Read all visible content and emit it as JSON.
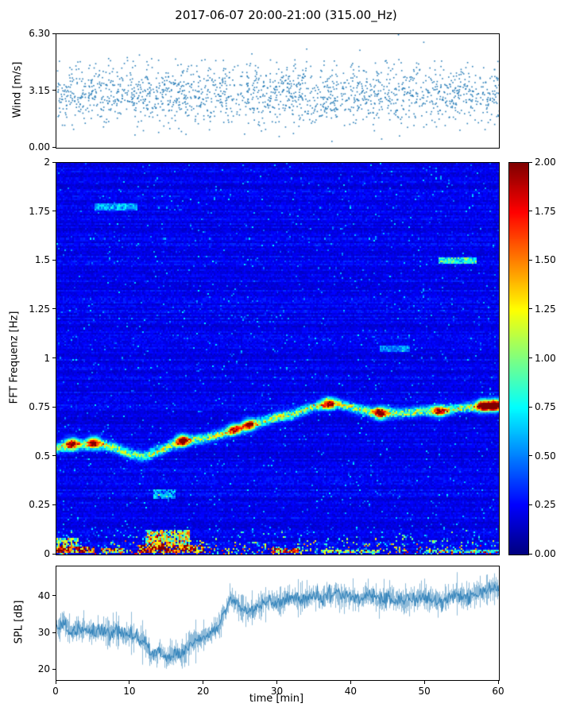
{
  "title": "2017-06-07 20:00-21:00 (315.00_Hz)",
  "colors": {
    "series": "#1f77b4",
    "axis": "#000000"
  },
  "chart_data": [
    {
      "type": "scatter",
      "name": "wind-speed",
      "ylabel": "Wind [m/s]",
      "x_range": [
        0,
        60
      ],
      "ylim": [
        0,
        6.3
      ],
      "yticks": [
        {
          "v": 6.3,
          "label": "6.30"
        },
        {
          "v": 3.15,
          "label": "3.15"
        },
        {
          "v": 0,
          "label": "0.00"
        }
      ],
      "marker_color": "#1f77b4",
      "series": {
        "name": "wind speed",
        "n_points": 1750,
        "mean": 3.0,
        "std": 0.85,
        "min": 0.2,
        "max": 6.3
      }
    },
    {
      "type": "heatmap",
      "name": "fft-spectrogram",
      "ylabel": "FFT Frequenz [Hz]",
      "x_range": [
        0,
        60
      ],
      "ylim": [
        0,
        2
      ],
      "yticks": [
        {
          "v": 2,
          "label": "2"
        },
        {
          "v": 1.75,
          "label": "1.75"
        },
        {
          "v": 1.5,
          "label": "1.5"
        },
        {
          "v": 1.25,
          "label": "1.25"
        },
        {
          "v": 1,
          "label": "1"
        },
        {
          "v": 0.75,
          "label": "0.75"
        },
        {
          "v": 0.5,
          "label": "0.5"
        },
        {
          "v": 0.25,
          "label": "0.25"
        },
        {
          "v": 0,
          "label": "0"
        }
      ],
      "colormap": "jet",
      "vmin": 0,
      "vmax": 2,
      "colorbar_ticks": [
        {
          "v": 2,
          "label": "2.00"
        },
        {
          "v": 1.75,
          "label": "1.75"
        },
        {
          "v": 1.5,
          "label": "1.50"
        },
        {
          "v": 1.25,
          "label": "1.25"
        },
        {
          "v": 1,
          "label": "1.00"
        },
        {
          "v": 0.75,
          "label": "0.75"
        },
        {
          "v": 0.5,
          "label": "0.50"
        },
        {
          "v": 0.25,
          "label": "0.25"
        },
        {
          "v": 0,
          "label": "0.00"
        }
      ],
      "background": {
        "mean": 0.22,
        "speckle_prob": 0.03,
        "speckle_max": 0.45
      },
      "ridge": {
        "points": [
          [
            0,
            0.54
          ],
          [
            2,
            0.56
          ],
          [
            4,
            0.56
          ],
          [
            6,
            0.56
          ],
          [
            8,
            0.54
          ],
          [
            10,
            0.51
          ],
          [
            12,
            0.5
          ],
          [
            14,
            0.53
          ],
          [
            16,
            0.56
          ],
          [
            18,
            0.58
          ],
          [
            20,
            0.59
          ],
          [
            22,
            0.61
          ],
          [
            24,
            0.63
          ],
          [
            26,
            0.66
          ],
          [
            28,
            0.68
          ],
          [
            30,
            0.7
          ],
          [
            32,
            0.71
          ],
          [
            34,
            0.74
          ],
          [
            36,
            0.76
          ],
          [
            38,
            0.77
          ],
          [
            40,
            0.75
          ],
          [
            42,
            0.73
          ],
          [
            44,
            0.72
          ],
          [
            46,
            0.72
          ],
          [
            48,
            0.72
          ],
          [
            50,
            0.73
          ],
          [
            52,
            0.73
          ],
          [
            54,
            0.74
          ],
          [
            56,
            0.75
          ],
          [
            58,
            0.75
          ],
          [
            60,
            0.76
          ]
        ],
        "width": 0.016,
        "intensity": 0.95
      },
      "bright_spots": [
        [
          2,
          0.56,
          1.3
        ],
        [
          5,
          0.57,
          1.2
        ],
        [
          17,
          0.58,
          1.5
        ],
        [
          24,
          0.64,
          1.0
        ],
        [
          26,
          0.66,
          1.2
        ],
        [
          37,
          0.77,
          1.2
        ],
        [
          44,
          0.72,
          1.4
        ],
        [
          52,
          0.73,
          1.1
        ],
        [
          58,
          0.76,
          1.7
        ],
        [
          59.5,
          0.76,
          1.9
        ]
      ],
      "spot_sigma": [
        0.6,
        0.02
      ],
      "harmonics": [
        [
          52,
          57,
          1.5,
          0.75
        ],
        [
          5,
          11,
          1.78,
          0.45
        ],
        [
          44,
          48,
          1.05,
          0.35
        ]
      ],
      "bottom_band": {
        "y_limit": 0.16,
        "speckle_prob": 0.22,
        "speckle_max": 1.3
      },
      "hot_spots": [
        [
          0,
          5,
          0.005,
          0.04,
          1.8
        ],
        [
          6,
          9,
          0.005,
          0.03,
          1.2
        ],
        [
          11,
          20,
          0.005,
          0.05,
          1.7
        ],
        [
          29,
          33,
          0.005,
          0.03,
          1.5
        ],
        [
          12,
          18,
          0.05,
          0.12,
          1.1
        ],
        [
          0,
          3,
          0.04,
          0.08,
          0.9
        ],
        [
          13,
          16,
          0.28,
          0.33,
          0.45
        ],
        [
          36,
          44,
          0.005,
          0.025,
          1.0
        ],
        [
          50,
          60,
          0.005,
          0.02,
          0.7
        ]
      ]
    },
    {
      "type": "line",
      "name": "spl",
      "ylabel": "SPL [dB]",
      "xlabel": "time [min]",
      "x_range": [
        0,
        60
      ],
      "ylim": [
        17.3,
        48.1
      ],
      "yticks": [
        {
          "v": 40,
          "label": "40"
        },
        {
          "v": 30,
          "label": "30"
        },
        {
          "v": 20,
          "label": "20"
        }
      ],
      "xticks": [
        {
          "v": 0,
          "label": "0"
        },
        {
          "v": 10,
          "label": "10"
        },
        {
          "v": 20,
          "label": "20"
        },
        {
          "v": 30,
          "label": "30"
        },
        {
          "v": 40,
          "label": "40"
        },
        {
          "v": 50,
          "label": "50"
        },
        {
          "v": 60,
          "label": "60"
        }
      ],
      "line_color": "#1f77b4",
      "noise_amp": 1.6,
      "keypoints": [
        [
          0,
          31
        ],
        [
          1,
          33
        ],
        [
          2,
          30
        ],
        [
          3,
          31
        ],
        [
          4,
          31.5
        ],
        [
          5,
          30
        ],
        [
          6,
          31
        ],
        [
          7,
          30
        ],
        [
          8,
          31
        ],
        [
          9,
          29.5
        ],
        [
          10,
          30
        ],
        [
          11,
          29
        ],
        [
          12,
          27.5
        ],
        [
          13,
          24
        ],
        [
          14,
          25.5
        ],
        [
          15,
          23
        ],
        [
          16,
          25
        ],
        [
          17,
          24
        ],
        [
          18,
          27
        ],
        [
          19,
          28
        ],
        [
          20,
          29
        ],
        [
          21,
          30
        ],
        [
          22,
          32
        ],
        [
          23,
          36
        ],
        [
          23.5,
          40
        ],
        [
          24,
          39
        ],
        [
          25,
          37
        ],
        [
          26,
          36
        ],
        [
          27,
          37
        ],
        [
          28,
          38
        ],
        [
          29,
          39
        ],
        [
          30,
          38
        ],
        [
          31,
          39
        ],
        [
          32,
          40
        ],
        [
          33,
          39
        ],
        [
          34,
          40
        ],
        [
          35,
          40
        ],
        [
          36,
          39.5
        ],
        [
          37,
          40
        ],
        [
          38,
          41
        ],
        [
          39,
          40
        ],
        [
          40,
          40
        ],
        [
          41,
          39
        ],
        [
          42,
          40
        ],
        [
          43,
          40
        ],
        [
          44,
          39
        ],
        [
          45,
          40
        ],
        [
          46,
          39
        ],
        [
          47,
          38.5
        ],
        [
          48,
          39
        ],
        [
          49,
          39
        ],
        [
          50,
          40
        ],
        [
          51,
          39
        ],
        [
          52,
          38.5
        ],
        [
          53,
          39
        ],
        [
          54,
          41
        ],
        [
          55,
          40
        ],
        [
          56,
          40
        ],
        [
          57,
          41
        ],
        [
          58,
          41
        ],
        [
          59,
          42
        ],
        [
          60,
          42
        ]
      ]
    }
  ]
}
